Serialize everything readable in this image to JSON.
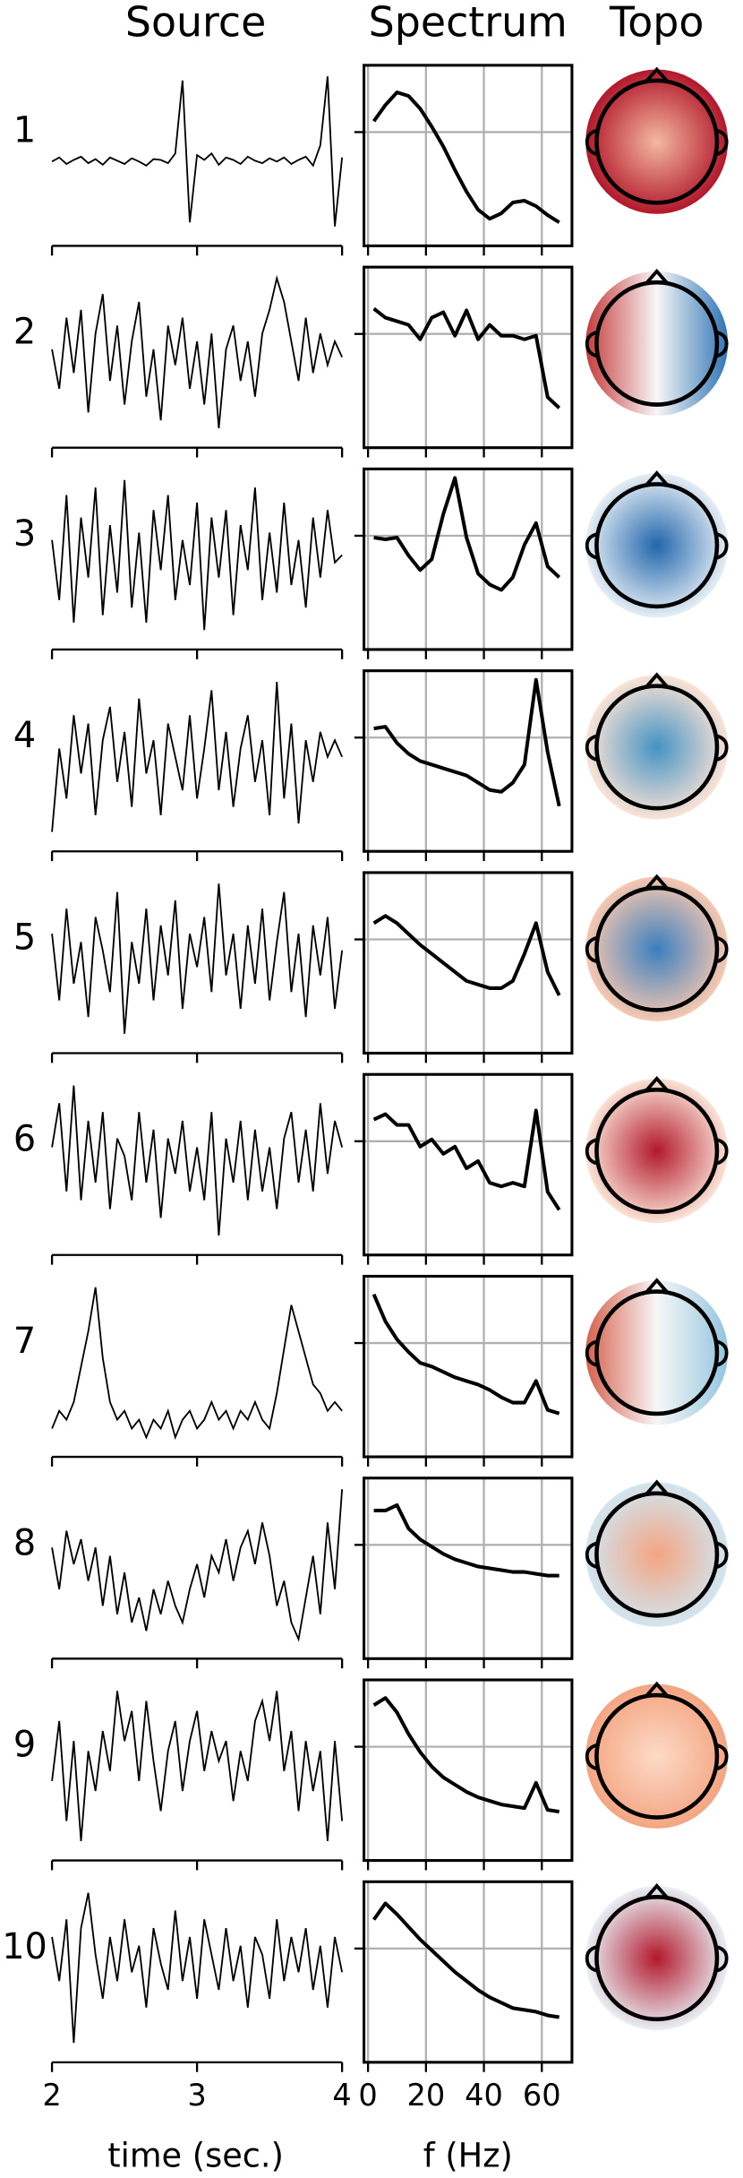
{
  "chart_data": {
    "type": "ica_panel",
    "titles": [
      "Source",
      "Spectrum",
      "Topo"
    ],
    "source_xlabel": "time (sec.)",
    "spectrum_xlabel": "f (Hz)",
    "time": [
      2,
      2.05,
      2.1,
      2.15,
      2.2,
      2.25,
      2.3,
      2.35,
      2.4,
      2.45,
      2.5,
      2.55,
      2.6,
      2.65,
      2.7,
      2.75,
      2.8,
      2.85,
      2.9,
      2.95,
      3,
      3.05,
      3.1,
      3.15,
      3.2,
      3.25,
      3.3,
      3.35,
      3.4,
      3.45,
      3.5,
      3.55,
      3.6,
      3.65,
      3.7,
      3.75,
      3.8,
      3.85,
      3.9,
      3.95,
      4
    ],
    "xlim": [
      2,
      4
    ],
    "xticks": [
      2,
      3,
      4
    ],
    "freqs": [
      2,
      6,
      10,
      14,
      18,
      22,
      26,
      30,
      34,
      38,
      42,
      46,
      50,
      54,
      58,
      62,
      66
    ],
    "spectrum_xlim": [
      -1.4,
      70.4
    ],
    "spectrum_xticks": [
      0,
      20,
      40,
      60
    ],
    "spectrum_ylim": [
      0,
      100
    ],
    "spectrum_yticks": [
      63
    ],
    "grid": true,
    "line_color": "#000000",
    "grid_color": "#b0b0b0",
    "components": [
      {
        "label": "1",
        "source": [
          0,
          0.05,
          -0.03,
          0.02,
          0.06,
          -0.02,
          0.03,
          -0.04,
          0.05,
          0.01,
          -0.03,
          0.04,
          0,
          -0.05,
          0.03,
          0.02,
          -0.02,
          0.1,
          1,
          -0.75,
          0.08,
          0.02,
          0.1,
          -0.04,
          0.05,
          0.02,
          -0.03,
          0.06,
          0.01,
          -0.02,
          0.04,
          0,
          0.05,
          -0.03,
          0.02,
          0.06,
          -0.05,
          0.2,
          1.05,
          -0.8,
          0.05
        ],
        "spectrum": [
          69,
          78,
          85,
          83,
          76,
          66,
          55,
          42,
          30,
          20,
          15,
          18,
          24,
          25,
          22,
          17,
          13
        ],
        "topo": {
          "style": "radial",
          "colors": [
            "#f4b9a0",
            "#b2182b"
          ]
        }
      },
      {
        "label": "2",
        "source": [
          0.1,
          -0.4,
          0.5,
          -0.2,
          0.6,
          -0.7,
          0.3,
          0.8,
          -0.3,
          0.4,
          -0.6,
          0.2,
          0.7,
          -0.5,
          0.1,
          -0.8,
          0.4,
          -0.1,
          0.5,
          -0.4,
          0.2,
          -0.6,
          0.3,
          -0.9,
          0.1,
          0.4,
          -0.3,
          0.2,
          -0.5,
          0.3,
          0.6,
          1,
          0.7,
          0.2,
          -0.3,
          0.5,
          -0.2,
          0.3,
          -0.1,
          0.2,
          0
        ],
        "spectrum": [
          77,
          72,
          70,
          68,
          60,
          72,
          75,
          62,
          76,
          60,
          68,
          62,
          62,
          60,
          62,
          28,
          22
        ],
        "topo": {
          "style": "linear",
          "colors": [
            "#c63b3b",
            "#f7f7f7",
            "#2e74b5"
          ]
        }
      },
      {
        "label": "3",
        "source": [
          0.2,
          -0.6,
          0.8,
          -0.9,
          0.5,
          -0.3,
          0.9,
          -0.8,
          0.4,
          -0.5,
          1,
          -0.7,
          0.3,
          -0.9,
          0.6,
          -0.2,
          0.8,
          -0.6,
          0.2,
          -0.4,
          0.7,
          -1,
          0.5,
          -0.3,
          0.6,
          -0.8,
          0.4,
          -0.2,
          0.9,
          -0.6,
          0.3,
          -0.5,
          0.7,
          -0.4,
          0.2,
          -0.7,
          0.5,
          -0.3,
          0.6,
          -0.1,
          0
        ],
        "spectrum": [
          62,
          61,
          62,
          52,
          44,
          50,
          75,
          95,
          62,
          42,
          36,
          33,
          40,
          58,
          70,
          46,
          40
        ],
        "topo": {
          "style": "radial",
          "colors": [
            "#2166ac",
            "#e6eef5"
          ]
        }
      },
      {
        "label": "4",
        "source": [
          -0.8,
          0.2,
          -0.4,
          0.6,
          -0.1,
          0.5,
          -0.6,
          0.3,
          0.7,
          -0.2,
          0.4,
          -0.5,
          0.8,
          -0.1,
          0.3,
          -0.6,
          0.5,
          0.1,
          -0.3,
          0.6,
          -0.4,
          0.2,
          0.9,
          -0.3,
          0.4,
          -0.5,
          0.2,
          0.6,
          -0.2,
          0.3,
          -0.6,
          1,
          -0.4,
          0.5,
          -0.7,
          0.3,
          -0.2,
          0.4,
          0.1,
          0.3,
          0.1
        ],
        "spectrum": [
          68,
          69,
          60,
          54,
          50,
          48,
          46,
          44,
          42,
          38,
          34,
          33,
          38,
          48,
          95,
          55,
          25
        ],
        "topo": {
          "style": "radial",
          "colors": [
            "#4393c3",
            "#fbe3d6"
          ]
        }
      },
      {
        "label": "5",
        "source": [
          0.3,
          -0.5,
          0.6,
          -0.3,
          0.2,
          -0.7,
          0.5,
          0.1,
          -0.4,
          0.8,
          -0.9,
          0.2,
          -0.3,
          0.6,
          -0.5,
          0.4,
          -0.2,
          0.7,
          -0.6,
          0.3,
          -0.1,
          0.5,
          -0.4,
          0.9,
          -0.2,
          0.3,
          -0.6,
          0.4,
          -0.3,
          0.6,
          -0.5,
          0.2,
          0.8,
          -0.4,
          0.3,
          -0.7,
          0.4,
          -0.2,
          0.5,
          -0.6,
          0.1
        ],
        "spectrum": [
          72,
          76,
          72,
          66,
          60,
          55,
          50,
          45,
          40,
          38,
          36,
          36,
          40,
          55,
          72,
          45,
          32
        ],
        "topo": {
          "style": "radial",
          "colors": [
            "#3a7fbf",
            "#f6c8b0"
          ]
        }
      },
      {
        "label": "6",
        "source": [
          0.2,
          0.7,
          -0.3,
          0.9,
          -0.4,
          0.5,
          -0.2,
          0.6,
          -0.5,
          0.3,
          0.1,
          -0.4,
          0.6,
          -0.2,
          0.4,
          -0.6,
          0.3,
          -0.1,
          0.5,
          -0.3,
          0.2,
          -0.4,
          0.6,
          -0.8,
          0.3,
          -0.2,
          0.5,
          -0.4,
          0.4,
          -0.3,
          0.2,
          -0.5,
          0.3,
          0.6,
          -0.2,
          0.4,
          -0.3,
          0.7,
          -0.1,
          0.5,
          0.2
        ],
        "spectrum": [
          75,
          78,
          72,
          72,
          60,
          64,
          56,
          60,
          48,
          52,
          40,
          38,
          40,
          38,
          80,
          35,
          25
        ],
        "topo": {
          "style": "radial",
          "colors": [
            "#b2182b",
            "#fbe3d6"
          ]
        }
      },
      {
        "label": "7",
        "source": [
          -0.6,
          -0.4,
          -0.5,
          -0.3,
          0.1,
          0.5,
          1,
          0.2,
          -0.3,
          -0.5,
          -0.4,
          -0.6,
          -0.5,
          -0.7,
          -0.5,
          -0.6,
          -0.4,
          -0.7,
          -0.5,
          -0.4,
          -0.6,
          -0.5,
          -0.3,
          -0.5,
          -0.4,
          -0.6,
          -0.4,
          -0.5,
          -0.3,
          -0.5,
          -0.6,
          -0.2,
          0.3,
          0.8,
          0.5,
          0.2,
          -0.1,
          -0.2,
          -0.4,
          -0.3,
          -0.4
        ],
        "spectrum": [
          90,
          75,
          65,
          58,
          52,
          50,
          47,
          44,
          42,
          40,
          37,
          33,
          30,
          30,
          42,
          26,
          24
        ],
        "topo": {
          "style": "linear",
          "colors": [
            "#d6604d",
            "#f7f7f7",
            "#92c5de"
          ]
        }
      },
      {
        "label": "8",
        "source": [
          0.3,
          -0.2,
          0.5,
          0.1,
          0.4,
          -0.1,
          0.3,
          -0.4,
          0.2,
          -0.5,
          0,
          -0.6,
          -0.3,
          -0.7,
          -0.2,
          -0.5,
          -0.1,
          -0.4,
          -0.6,
          -0.2,
          0.1,
          -0.3,
          0.2,
          0,
          0.4,
          -0.1,
          0.3,
          0.5,
          0.1,
          0.6,
          0.2,
          -0.4,
          -0.1,
          -0.6,
          -0.8,
          -0.3,
          0.2,
          -0.5,
          0.6,
          -0.2,
          1
        ],
        "spectrum": [
          82,
          82,
          85,
          72,
          66,
          62,
          58,
          55,
          53,
          51,
          50,
          49,
          48,
          48,
          47,
          46,
          46
        ],
        "topo": {
          "style": "radial",
          "colors": [
            "#f4a582",
            "#d1e5f0"
          ]
        }
      },
      {
        "label": "9",
        "source": [
          -0.2,
          0.4,
          -0.6,
          0.2,
          -0.8,
          0.1,
          -0.3,
          0.3,
          -0.1,
          0.7,
          0.2,
          0.5,
          -0.2,
          0.6,
          0,
          -0.5,
          0.1,
          0.4,
          -0.3,
          0.2,
          0.5,
          -0.1,
          0.3,
          0,
          0.2,
          -0.4,
          0.1,
          -0.2,
          0.4,
          0.6,
          0.2,
          0.7,
          -0.1,
          0.3,
          -0.5,
          0.2,
          -0.3,
          0.1,
          -0.8,
          0.2,
          -0.6
        ],
        "spectrum": [
          86,
          90,
          82,
          70,
          60,
          52,
          46,
          42,
          38,
          35,
          33,
          31,
          30,
          29,
          43,
          28,
          27
        ],
        "topo": {
          "style": "radial",
          "colors": [
            "#fddbc7",
            "#f4a582"
          ]
        }
      },
      {
        "label": "10",
        "source": [
          0.3,
          -0.2,
          0.5,
          -0.9,
          0.4,
          0.8,
          0.1,
          -0.4,
          0.3,
          -0.2,
          0.5,
          -0.1,
          0.2,
          -0.5,
          0.4,
          0,
          -0.3,
          0.6,
          -0.2,
          0.3,
          -0.4,
          0.5,
          0.1,
          -0.3,
          0.4,
          -0.2,
          0.2,
          -0.5,
          0.3,
          0.1,
          -0.4,
          0.5,
          -0.2,
          0.3,
          -0.1,
          0.4,
          -0.3,
          0.2,
          -0.5,
          0.3,
          -0.1
        ],
        "spectrum": [
          79,
          88,
          82,
          75,
          68,
          62,
          56,
          50,
          45,
          40,
          36,
          33,
          30,
          29,
          28,
          26,
          25
        ],
        "topo": {
          "style": "radial",
          "colors": [
            "#b2182b",
            "#e8f0f6"
          ]
        }
      }
    ]
  }
}
